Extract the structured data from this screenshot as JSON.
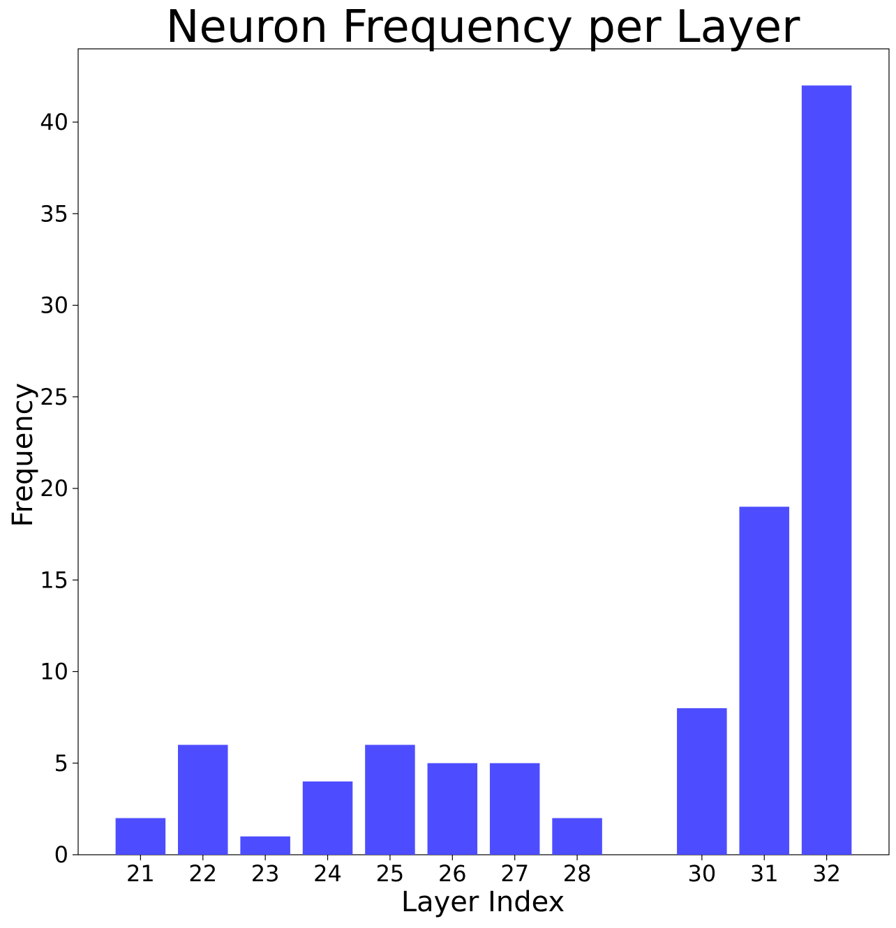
{
  "chart_data": {
    "type": "bar",
    "title": "Neuron Frequency per Layer",
    "xlabel": "Layer Index",
    "ylabel": "Frequency",
    "categories": [
      "21",
      "22",
      "23",
      "24",
      "25",
      "26",
      "27",
      "28",
      "30",
      "31",
      "32"
    ],
    "x": [
      21,
      22,
      23,
      24,
      25,
      26,
      27,
      28,
      30,
      31,
      32
    ],
    "values": [
      2,
      6,
      1,
      4,
      6,
      5,
      5,
      2,
      8,
      19,
      42
    ],
    "xlim": [
      20,
      33
    ],
    "ylim": [
      0,
      44
    ],
    "yticks": [
      0,
      5,
      10,
      15,
      20,
      25,
      30,
      35,
      40
    ],
    "bar_color": "#4d4dff",
    "grid": false,
    "legend": "none"
  }
}
